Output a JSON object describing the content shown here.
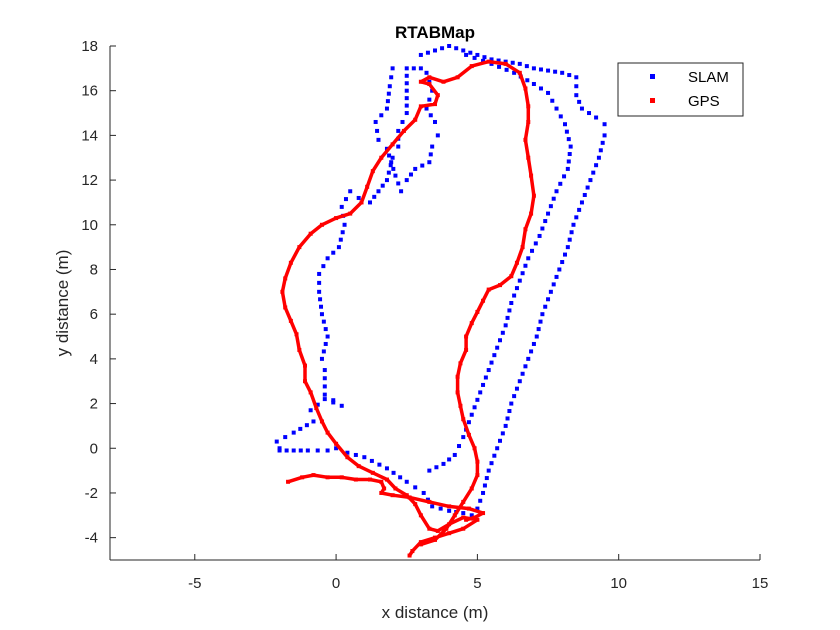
{
  "chart_data": {
    "type": "scatter",
    "title": "RTABMap",
    "xlabel": "x distance (m)",
    "ylabel": "y distance (m)",
    "xlim": [
      -8,
      15
    ],
    "ylim": [
      -5,
      18
    ],
    "xticks": [
      -5,
      0,
      5,
      10,
      15
    ],
    "yticks": [
      -4,
      -2,
      0,
      2,
      4,
      6,
      8,
      10,
      12,
      14,
      16,
      18
    ],
    "grid": false,
    "legend_position": "top-right",
    "series": [
      {
        "name": "SLAM",
        "color": "#0000ff",
        "marker": "dotted-square",
        "points": [
          [
            -2.0,
            0.0
          ],
          [
            -2.1,
            0.3
          ],
          [
            -1.5,
            0.7
          ],
          [
            -0.8,
            1.2
          ],
          [
            -0.9,
            1.7
          ],
          [
            -0.4,
            2.2
          ],
          [
            0.2,
            1.9
          ],
          [
            -0.4,
            2.4
          ],
          [
            -0.4,
            3.5
          ],
          [
            -0.5,
            4.0
          ],
          [
            -0.3,
            5.0
          ],
          [
            -0.5,
            6.0
          ],
          [
            -0.6,
            7.0
          ],
          [
            -0.6,
            7.8
          ],
          [
            -0.3,
            8.5
          ],
          [
            0.1,
            9.0
          ],
          [
            0.3,
            10.0
          ],
          [
            0.2,
            10.8
          ],
          [
            0.5,
            11.5
          ],
          [
            0.8,
            11.2
          ],
          [
            1.2,
            11.0
          ],
          [
            1.5,
            11.5
          ],
          [
            1.8,
            12.0
          ],
          [
            2.0,
            13.0
          ],
          [
            2.2,
            13.5
          ],
          [
            2.2,
            14.2
          ],
          [
            2.5,
            15.0
          ],
          [
            2.5,
            16.0
          ],
          [
            2.5,
            17.0
          ],
          [
            3.0,
            17.0
          ],
          [
            3.0,
            17.6
          ],
          [
            3.5,
            17.8
          ],
          [
            4.0,
            18.0
          ],
          [
            4.5,
            17.8
          ],
          [
            5.0,
            17.6
          ],
          [
            5.5,
            17.4
          ],
          [
            6.0,
            17.3
          ],
          [
            6.5,
            17.2
          ],
          [
            7.0,
            17.0
          ],
          [
            7.5,
            16.9
          ],
          [
            8.0,
            16.8
          ],
          [
            8.5,
            16.6
          ],
          [
            8.5,
            15.8
          ],
          [
            8.7,
            15.2
          ],
          [
            9.2,
            14.8
          ],
          [
            9.5,
            14.5
          ],
          [
            9.5,
            14.0
          ],
          [
            9.3,
            13.0
          ],
          [
            9.0,
            12.0
          ],
          [
            8.7,
            11.0
          ],
          [
            8.4,
            10.0
          ],
          [
            8.2,
            9.0
          ],
          [
            7.9,
            8.0
          ],
          [
            7.6,
            7.0
          ],
          [
            7.3,
            6.0
          ],
          [
            7.1,
            5.0
          ],
          [
            6.8,
            4.0
          ],
          [
            6.5,
            3.0
          ],
          [
            6.2,
            2.0
          ],
          [
            6.0,
            1.0
          ],
          [
            5.7,
            0.0
          ],
          [
            5.4,
            -1.0
          ],
          [
            5.2,
            -2.0
          ],
          [
            5.0,
            -2.7
          ],
          [
            4.8,
            -3.0
          ],
          [
            4.5,
            -2.9
          ],
          [
            4.0,
            -2.8
          ],
          [
            3.4,
            -2.6
          ],
          [
            3.1,
            -2.0
          ],
          [
            2.5,
            -1.5
          ],
          [
            1.8,
            -0.9
          ],
          [
            1.0,
            -0.4
          ],
          [
            0.4,
            -0.2
          ],
          [
            0.0,
            0.0
          ],
          [
            -0.3,
            -0.1
          ],
          [
            -1.0,
            -0.1
          ],
          [
            -1.5,
            -0.1
          ],
          [
            -2.0,
            -0.1
          ],
          [
            3.2,
            16.8
          ],
          [
            3.4,
            16.0
          ],
          [
            3.2,
            15.2
          ],
          [
            3.5,
            14.6
          ],
          [
            3.6,
            14.0
          ],
          [
            3.4,
            13.5
          ],
          [
            3.3,
            12.8
          ],
          [
            2.8,
            12.5
          ],
          [
            2.5,
            12.0
          ],
          [
            2.3,
            11.5
          ],
          [
            2.1,
            12.2
          ],
          [
            1.8,
            13.4
          ],
          [
            1.5,
            13.8
          ],
          [
            1.4,
            14.6
          ],
          [
            1.8,
            15.2
          ],
          [
            1.9,
            16.2
          ],
          [
            2.0,
            17.0
          ],
          [
            4.6,
            17.6
          ],
          [
            5.5,
            17.2
          ],
          [
            6.3,
            16.8
          ],
          [
            7.0,
            16.3
          ],
          [
            7.5,
            15.9
          ],
          [
            7.8,
            15.2
          ],
          [
            8.1,
            14.5
          ],
          [
            8.3,
            13.5
          ],
          [
            8.2,
            12.5
          ],
          [
            7.8,
            11.5
          ],
          [
            7.5,
            10.5
          ],
          [
            7.2,
            9.5
          ],
          [
            6.8,
            8.5
          ],
          [
            6.5,
            7.5
          ],
          [
            6.2,
            6.5
          ],
          [
            6.0,
            5.5
          ],
          [
            5.7,
            4.5
          ],
          [
            5.4,
            3.5
          ],
          [
            5.1,
            2.5
          ],
          [
            4.8,
            1.5
          ],
          [
            4.5,
            0.5
          ],
          [
            4.2,
            -0.3
          ],
          [
            3.8,
            -0.7
          ],
          [
            3.3,
            -1.0
          ]
        ]
      },
      {
        "name": "GPS",
        "color": "#ff0000",
        "marker": "solid-line",
        "points": [
          [
            2.6,
            -4.8
          ],
          [
            2.7,
            -4.6
          ],
          [
            3.0,
            -4.2
          ],
          [
            3.5,
            -4.0
          ],
          [
            4.0,
            -3.8
          ],
          [
            4.5,
            -3.6
          ],
          [
            5.0,
            -3.2
          ],
          [
            4.5,
            -3.1
          ],
          [
            4.0,
            -3.4
          ],
          [
            3.6,
            -3.7
          ],
          [
            3.3,
            -3.6
          ],
          [
            3.0,
            -3.0
          ],
          [
            2.8,
            -2.5
          ],
          [
            2.5,
            -2.1
          ],
          [
            2.1,
            -1.8
          ],
          [
            1.8,
            -1.4
          ],
          [
            1.3,
            -1.1
          ],
          [
            0.8,
            -0.8
          ],
          [
            0.4,
            -0.4
          ],
          [
            0.0,
            0.2
          ],
          [
            -0.3,
            0.7
          ],
          [
            -0.5,
            1.2
          ],
          [
            -0.7,
            1.8
          ],
          [
            -0.9,
            2.5
          ],
          [
            -1.1,
            3.0
          ],
          [
            -1.1,
            3.7
          ],
          [
            -1.3,
            4.4
          ],
          [
            -1.4,
            5.1
          ],
          [
            -1.6,
            5.7
          ],
          [
            -1.8,
            6.3
          ],
          [
            -1.9,
            7.0
          ],
          [
            -1.8,
            7.6
          ],
          [
            -1.6,
            8.3
          ],
          [
            -1.3,
            9.0
          ],
          [
            -0.9,
            9.6
          ],
          [
            -0.5,
            10.0
          ],
          [
            0.0,
            10.3
          ],
          [
            0.5,
            10.5
          ],
          [
            0.9,
            11.0
          ],
          [
            1.1,
            11.7
          ],
          [
            1.3,
            12.4
          ],
          [
            1.6,
            13.0
          ],
          [
            2.0,
            13.6
          ],
          [
            2.4,
            14.2
          ],
          [
            2.8,
            14.7
          ],
          [
            3.0,
            15.3
          ],
          [
            3.5,
            15.4
          ],
          [
            3.6,
            15.8
          ],
          [
            3.3,
            16.3
          ],
          [
            3.0,
            16.4
          ],
          [
            3.3,
            16.6
          ],
          [
            3.8,
            16.4
          ],
          [
            4.3,
            16.6
          ],
          [
            4.8,
            17.1
          ],
          [
            5.4,
            17.3
          ],
          [
            6.0,
            17.2
          ],
          [
            6.5,
            16.8
          ],
          [
            6.7,
            16.1
          ],
          [
            6.8,
            15.3
          ],
          [
            6.8,
            14.6
          ],
          [
            6.7,
            13.8
          ],
          [
            6.8,
            13.0
          ],
          [
            6.9,
            12.2
          ],
          [
            7.0,
            11.3
          ],
          [
            6.9,
            10.5
          ],
          [
            6.7,
            9.8
          ],
          [
            6.6,
            9.0
          ],
          [
            6.4,
            8.3
          ],
          [
            6.2,
            7.7
          ],
          [
            5.8,
            7.3
          ],
          [
            5.4,
            7.1
          ],
          [
            5.2,
            6.6
          ],
          [
            5.0,
            6.1
          ],
          [
            4.8,
            5.6
          ],
          [
            4.6,
            5.0
          ],
          [
            4.6,
            4.4
          ],
          [
            4.4,
            3.8
          ],
          [
            4.3,
            3.2
          ],
          [
            4.3,
            2.5
          ],
          [
            4.4,
            1.9
          ],
          [
            4.5,
            1.3
          ],
          [
            4.7,
            0.6
          ],
          [
            4.9,
            0.0
          ],
          [
            5.0,
            -0.6
          ],
          [
            5.0,
            -1.2
          ],
          [
            4.8,
            -1.8
          ],
          [
            4.5,
            -2.4
          ],
          [
            4.2,
            -3.0
          ],
          [
            3.9,
            -3.6
          ],
          [
            3.5,
            -4.1
          ],
          [
            3.0,
            -4.3
          ]
        ]
      },
      {
        "name": "",
        "color": "#ff0000",
        "marker": "solid-line",
        "points": [
          [
            -1.7,
            -1.5
          ],
          [
            -1.2,
            -1.3
          ],
          [
            -0.8,
            -1.2
          ],
          [
            -0.3,
            -1.3
          ],
          [
            0.2,
            -1.3
          ],
          [
            0.7,
            -1.4
          ],
          [
            1.2,
            -1.4
          ],
          [
            1.6,
            -1.5
          ],
          [
            1.7,
            -1.8
          ],
          [
            1.6,
            -2.0
          ],
          [
            2.0,
            -2.1
          ],
          [
            2.6,
            -2.2
          ],
          [
            3.3,
            -2.4
          ],
          [
            4.0,
            -2.6
          ],
          [
            4.7,
            -2.7
          ],
          [
            5.2,
            -2.9
          ],
          [
            4.9,
            -3.1
          ],
          [
            4.6,
            -3.2
          ]
        ]
      }
    ],
    "legend": [
      {
        "label": "SLAM",
        "color": "#0000ff"
      },
      {
        "label": "GPS",
        "color": "#ff0000"
      }
    ]
  }
}
